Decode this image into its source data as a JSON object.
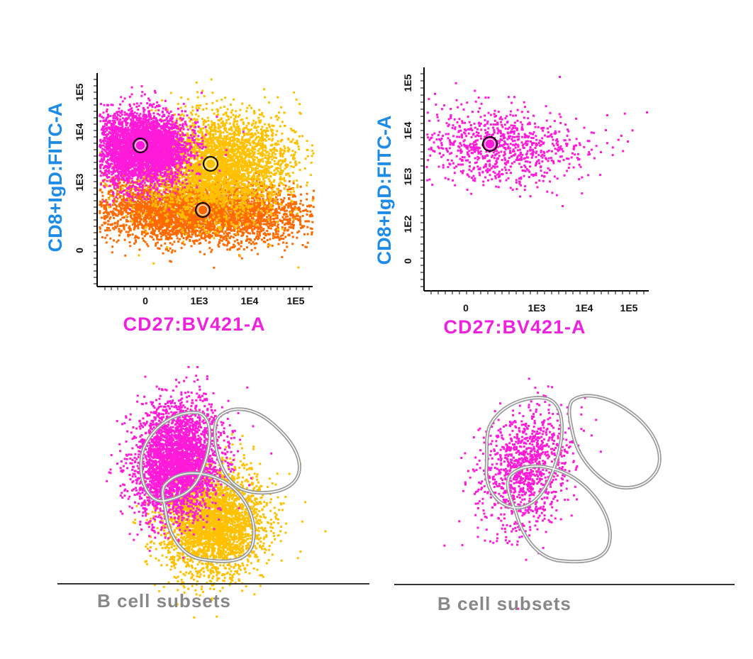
{
  "colors": {
    "magenta": "#ff1ad9",
    "orange": "#ff6a00",
    "gold": "#ffc000",
    "axis_label_y": "#1e8ce6",
    "axis_label_x": "#ee22dd",
    "gate": "#9a9a9a",
    "caption": "#888888"
  },
  "chart_data": [
    {
      "type": "scatter",
      "panel": "top-left",
      "xlabel": "CD27:BV421-A",
      "ylabel": "CD8+IgD:FITC-A",
      "x_ticks": [
        "0",
        "1E3",
        "1E4",
        "1E5"
      ],
      "y_ticks": [
        "0",
        "1E3",
        "1E4",
        "1E5"
      ],
      "scale": "biexponential",
      "populations": [
        {
          "name": "magenta",
          "color": "#ff1ad9",
          "center_x": "~0",
          "center_y": "~5E3"
        },
        {
          "name": "gold",
          "color": "#ffc000",
          "center_x": "~2E3",
          "center_y": "~2E3"
        },
        {
          "name": "orange",
          "color": "#ff6a00",
          "center_x": "~1E3",
          "center_y": "~3E2"
        }
      ],
      "medians": [
        {
          "population": "magenta",
          "x": "~0",
          "y": "~5E3"
        },
        {
          "population": "gold",
          "x": "~2E3",
          "y": "~2E3"
        },
        {
          "population": "orange",
          "x": "~1E3",
          "y": "~3E2"
        }
      ]
    },
    {
      "type": "scatter",
      "panel": "top-right",
      "xlabel": "CD27:BV421-A",
      "ylabel": "CD8+IgD:FITC-A",
      "x_ticks": [
        "0",
        "1E3",
        "1E4",
        "1E5"
      ],
      "y_ticks": [
        "0",
        "1E2",
        "1E3",
        "1E4",
        "1E5"
      ],
      "scale": "biexponential",
      "populations": [
        {
          "name": "magenta",
          "color": "#ff1ad9",
          "center_x": "~2E2",
          "center_y": "~4E3"
        }
      ],
      "medians": [
        {
          "population": "magenta",
          "x": "~2E2",
          "y": "~4E3"
        }
      ]
    },
    {
      "type": "scatter",
      "panel": "bottom-left",
      "title": "B cell subsets",
      "description": "dimensionality-reduction map with three gated islands",
      "gates": 3,
      "populations": [
        "magenta",
        "orange",
        "gold"
      ]
    },
    {
      "type": "scatter",
      "panel": "bottom-right",
      "title": "B cell subsets",
      "description": "dimensionality-reduction map with three gated islands",
      "gates": 3,
      "populations": [
        "magenta"
      ]
    }
  ],
  "panels": {
    "top_left": {
      "ylabel": "CD8+IgD:FITC-A",
      "xlabel": "CD27:BV421-A",
      "y_ticks": [
        "1E5",
        "1E4",
        "1E3",
        "0"
      ],
      "x_ticks": [
        "0",
        "1E3",
        "1E4",
        "1E5"
      ]
    },
    "top_right": {
      "ylabel": "CD8+IgD:FITC-A",
      "xlabel": "CD27:BV421-A",
      "y_ticks": [
        "1E5",
        "1E4",
        "1E3",
        "1E2",
        "0"
      ],
      "x_ticks": [
        "0",
        "1E3",
        "1E4",
        "1E5"
      ]
    },
    "bottom_left": {
      "caption": "B cell subsets"
    },
    "bottom_right": {
      "caption": "B cell subsets"
    }
  }
}
